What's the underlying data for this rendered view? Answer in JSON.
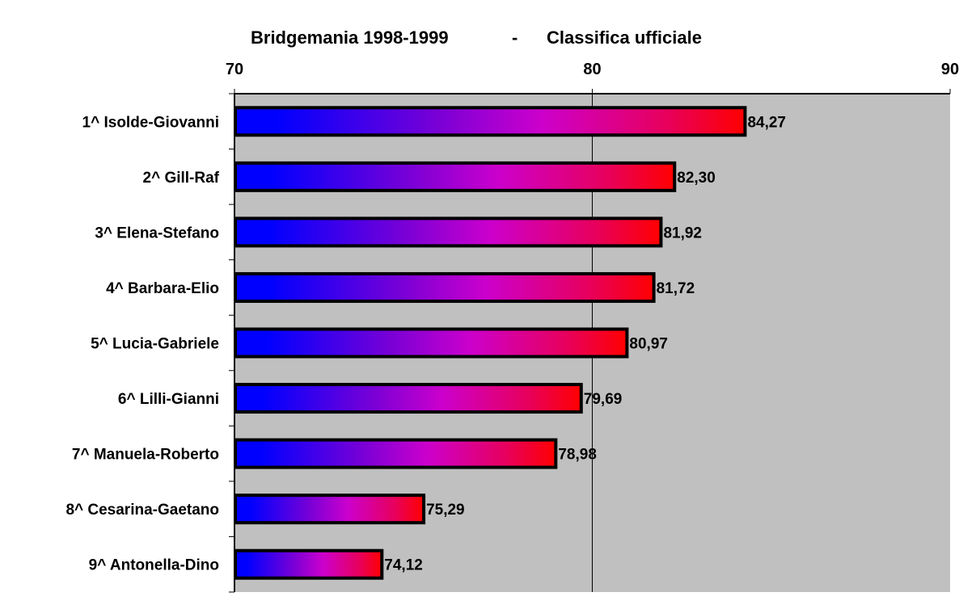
{
  "chart_data": {
    "type": "bar",
    "orientation": "horizontal",
    "title_left": "Bridgemania 1998-1999",
    "title_sep": "-",
    "title_right": "Classifica ufficiale",
    "xlim": [
      70,
      90
    ],
    "x_ticks": [
      "70",
      "80",
      "90"
    ],
    "x_tick_values": [
      70,
      80,
      90
    ],
    "grid": "vertical at 80",
    "categories": [
      "1^   Isolde-Giovanni",
      "2^   Gill-Raf",
      "3^   Elena-Stefano",
      "4^   Barbara-Elio",
      "5^   Lucia-Gabriele",
      "6^   Lilli-Gianni",
      "7^   Manuela-Roberto",
      "8^   Cesarina-Gaetano",
      "9^   Antonella-Dino"
    ],
    "values": [
      84.27,
      82.3,
      81.92,
      81.72,
      80.97,
      79.69,
      78.98,
      75.29,
      74.12
    ],
    "data_labels": [
      "84,27",
      "82,30",
      "81,92",
      "81,72",
      "80,97",
      "79,69",
      "78,98",
      "75,29",
      "74,12"
    ],
    "colors": {
      "plot_bg": "#C0C0C0",
      "gradient_start": "#0000FF",
      "gradient_mid": "#CC00CC",
      "gradient_end": "#FF0000"
    }
  }
}
